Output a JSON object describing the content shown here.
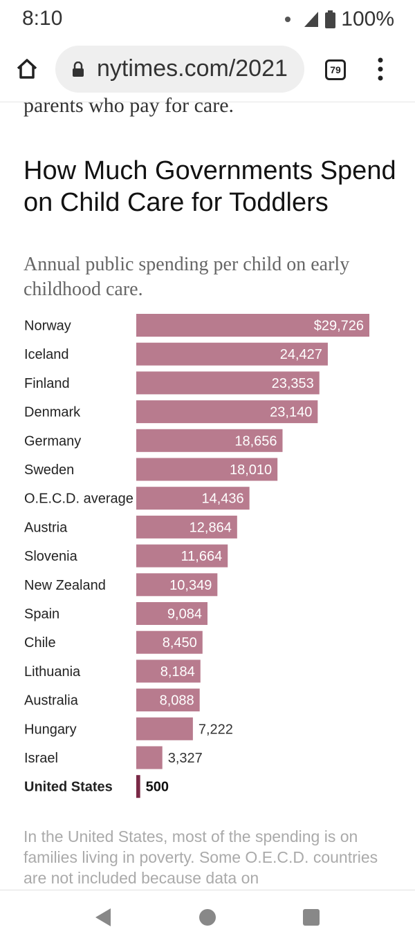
{
  "status_bar": {
    "time": "8:10",
    "battery": "100%"
  },
  "browser": {
    "url": "nytimes.com/2021",
    "tab_count": "79"
  },
  "article": {
    "previous_text": "parents who pay for care.",
    "footnote": "In the United States, most of the spending is on families living in poverty. Some O.E.C.D. countries are not included because data on"
  },
  "chart_data": {
    "type": "bar",
    "orientation": "horizontal",
    "title": "How Much Governments Spend on Child Care for Toddlers",
    "subtitle": "Annual public spending per child on early childhood care.",
    "categories": [
      "Norway",
      "Iceland",
      "Finland",
      "Denmark",
      "Germany",
      "Sweden",
      "O.E.C.D. average",
      "Austria",
      "Slovenia",
      "New Zealand",
      "Spain",
      "Chile",
      "Lithuania",
      "Australia",
      "Hungary",
      "Israel",
      "United States"
    ],
    "values": [
      29726,
      24427,
      23353,
      23140,
      18656,
      18010,
      14436,
      12864,
      11664,
      10349,
      9084,
      8450,
      8184,
      8088,
      7222,
      3327,
      500
    ],
    "value_labels": [
      "$29,726",
      "24,427",
      "23,353",
      "23,140",
      "18,656",
      "18,010",
      "14,436",
      "12,864",
      "11,664",
      "10,349",
      "9,084",
      "8,450",
      "8,184",
      "8,088",
      "7,222",
      "3,327",
      "500"
    ],
    "highlight": "United States",
    "colors": {
      "bar": "#b87b8e",
      "highlight": "#7a2946",
      "label_inside": "#ffffff",
      "label_outside": "#333333"
    },
    "xlim": [
      0,
      29726
    ]
  }
}
